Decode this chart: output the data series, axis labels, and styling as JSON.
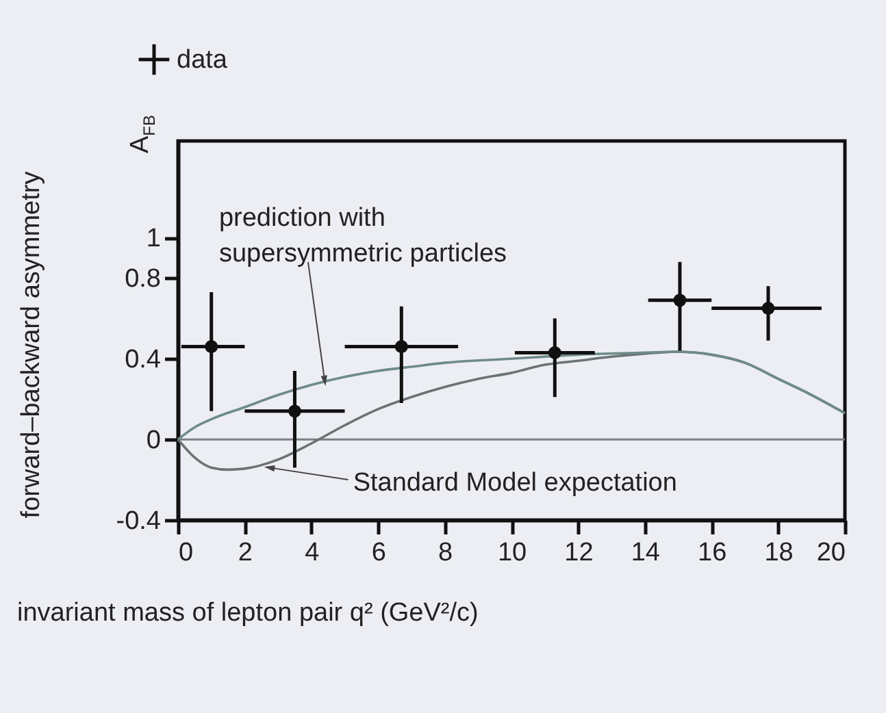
{
  "chart_data": {
    "type": "scatter",
    "xlabel": "invariant mass of lepton pair q² (GeV²/c)",
    "ylabel": "forward–backward asymmetry",
    "xlim": [
      0,
      20
    ],
    "xticks": [
      0,
      2,
      4,
      6,
      8,
      10,
      12,
      14,
      16,
      18,
      20
    ],
    "ylim": [
      -0.4,
      1.48
    ],
    "yticks": [
      -0.4,
      0,
      0.4,
      0.8,
      1
    ],
    "grid": false,
    "legend": "top left",
    "ref_lines": [
      {
        "axis": "y",
        "value": 0,
        "color": "#7a7f84"
      }
    ],
    "annotations": [
      "A$_{FB}$",
      {
        "text": "prediction with\nsupersymmetric particles",
        "x": 4.4,
        "y": 0.29
      },
      {
        "text": "Standard Model expectation",
        "x": 2.74,
        "y": -0.14
      }
    ],
    "series": [
      {
        "type": "line",
        "color": "#6b7373",
        "marker": "none",
        "x": [
          0,
          0.5,
          1,
          1.5,
          2,
          3,
          4,
          5,
          6,
          7,
          8,
          9,
          10,
          11,
          12,
          13,
          14,
          15,
          16,
          17,
          18,
          19,
          20
        ],
        "values": [
          0,
          -0.09,
          -0.14,
          -0.15,
          -0.145,
          -0.1,
          -0.02,
          0.07,
          0.15,
          0.21,
          0.26,
          0.3,
          0.33,
          0.37,
          0.39,
          0.41,
          0.425,
          0.435,
          0.42,
          0.38,
          0.3,
          0.22,
          0.13
        ]
      },
      {
        "type": "line",
        "color": "#6f8a8a",
        "marker": "none",
        "x": [
          0,
          0.5,
          1,
          2,
          3,
          4,
          5,
          6,
          7,
          8,
          10,
          12,
          14,
          15,
          16,
          17,
          18,
          19,
          20
        ],
        "values": [
          0,
          0.06,
          0.1,
          0.16,
          0.22,
          0.27,
          0.31,
          0.34,
          0.36,
          0.38,
          0.4,
          0.42,
          0.43,
          0.435,
          0.42,
          0.38,
          0.3,
          0.22,
          0.13
        ]
      },
      {
        "name": "data",
        "color": "#111111",
        "marker": "circle",
        "x": [
          1.0,
          3.5,
          6.7,
          11.3,
          15.05,
          17.7
        ],
        "values": [
          0.46,
          0.14,
          0.46,
          0.43,
          0.69,
          0.65
        ],
        "errors": [
          [
            0.14,
            0.73
          ],
          [
            -0.14,
            0.34
          ],
          [
            0.18,
            0.66
          ],
          [
            0.21,
            0.6
          ],
          [
            0.44,
            0.88
          ],
          [
            0.49,
            0.76
          ]
        ],
        "xerrors": [
          [
            0.1,
            2.0
          ],
          [
            2.0,
            5.0
          ],
          [
            5.0,
            8.4
          ],
          [
            10.1,
            12.5
          ],
          [
            14.1,
            16.0
          ],
          [
            16.0,
            19.3
          ]
        ]
      }
    ]
  }
}
